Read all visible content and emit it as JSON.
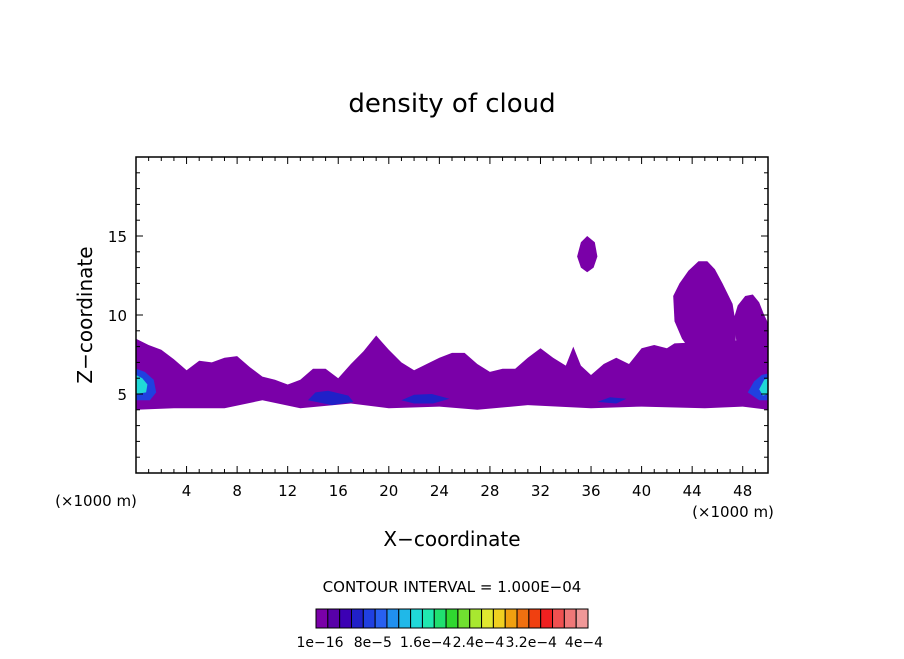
{
  "chart_data": {
    "type": "contour",
    "title": "density of cloud",
    "xlabel": "X−coordinate",
    "ylabel": "Z−coordinate",
    "x_unit": "(×1000 m)",
    "z_unit": "(×1000 m)",
    "xlim": [
      0,
      50
    ],
    "ylim": [
      0,
      20
    ],
    "x_ticks": [
      4,
      8,
      12,
      16,
      20,
      24,
      28,
      32,
      36,
      40,
      44,
      48
    ],
    "y_ticks": [
      5,
      10,
      15
    ],
    "contour_interval_text": "CONTOUR INTERVAL = 1.000E−04",
    "colorbar": {
      "labels": [
        "1e−16",
        "8e−5",
        "1.6e−4",
        "2.4e−4",
        "3.2e−4",
        "4e−4"
      ],
      "colors": [
        "#7a00a8",
        "#5800a8",
        "#3c00b4",
        "#2020c8",
        "#2040e0",
        "#2860f0",
        "#2090f0",
        "#20b8e8",
        "#20d8d8",
        "#20e8b0",
        "#20e070",
        "#30d830",
        "#70e030",
        "#a8e830",
        "#e0e830",
        "#f0d020",
        "#f0a010",
        "#f07010",
        "#f04010",
        "#f02020",
        "#f05050",
        "#f07878",
        "#f09898"
      ]
    },
    "regions": [
      {
        "kind": "cloud_band",
        "x_range": [
          0,
          50
        ],
        "z_range": [
          4,
          8.5
        ],
        "level": "1e−16 to 8e−5"
      },
      {
        "kind": "cloud_patch",
        "x_range": [
          34.7,
          36.5
        ],
        "z_range": [
          12.7,
          15
        ],
        "level": "1e−16 to 8e−5"
      },
      {
        "kind": "cloud_tower",
        "x_range": [
          42.5,
          47.5
        ],
        "z_range": [
          6,
          13.5
        ],
        "level": "1e−16 to 8e−5"
      },
      {
        "kind": "cloud_tower",
        "x_range": [
          47,
          50
        ],
        "z_range": [
          6.5,
          11.3
        ],
        "level": "1e−16 to 8e−5"
      },
      {
        "kind": "core",
        "x_range": [
          0,
          1.5
        ],
        "z_range": [
          4.5,
          6.5
        ],
        "level": "up to 1.6e−4"
      },
      {
        "kind": "core",
        "x_range": [
          48.5,
          50
        ],
        "z_range": [
          4.5,
          6.2
        ],
        "level": "up to 1.6e−4"
      },
      {
        "kind": "core",
        "x_range": [
          13.5,
          17
        ],
        "z_range": [
          4.3,
          5.1
        ],
        "level": "8e−5"
      },
      {
        "kind": "core",
        "x_range": [
          21,
          25
        ],
        "z_range": [
          4.4,
          5.0
        ],
        "level": "8e−5"
      }
    ]
  }
}
